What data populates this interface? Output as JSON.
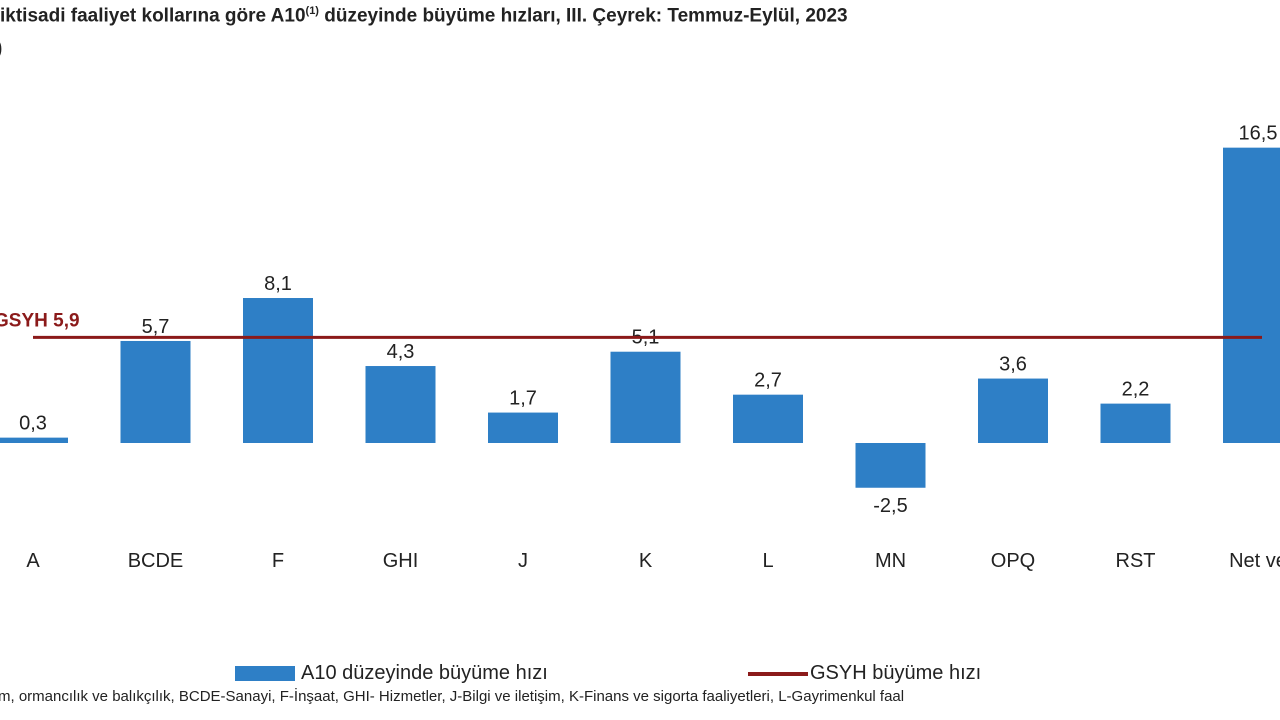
{
  "chart_data": {
    "type": "bar",
    "title": "iktisadi faaliyet kollarına göre A10",
    "title_sup": "(1)",
    "title_rest": " düzeyinde büyüme hızları, III. Çeyrek: Temmuz-Eylül, 2023",
    "unit_fragment": ")",
    "categories": [
      "A",
      "BCDE",
      "F",
      "GHI",
      "J",
      "K",
      "L",
      "MN",
      "OPQ",
      "RST",
      "Net ve"
    ],
    "values": [
      0.3,
      5.7,
      8.1,
      4.3,
      1.7,
      5.1,
      2.7,
      -2.5,
      3.6,
      2.2,
      16.5
    ],
    "value_labels": [
      "0,3",
      "5,7",
      "8,1",
      "4,3",
      "1,7",
      "5,1",
      "2,7",
      "-2,5",
      "3,6",
      "2,2",
      "16,5"
    ],
    "reference_line": {
      "name": "GSYH büyüme hızı",
      "value": 5.9,
      "label": "GSYH 5,9"
    },
    "legend": [
      {
        "name": "A10 düzeyinde büyüme hızı",
        "type": "bar"
      },
      {
        "name": "GSYH büyüme hızı",
        "type": "line"
      }
    ],
    "legend_position": "bottom",
    "grid": false,
    "colors": {
      "bar": "#2E7FC6",
      "line": "#8B1A1A"
    }
  },
  "footnote": "m, ormancılık ve balıkçılık, BCDE-Sanayi, F-İnşaat, GHI- Hizmetler, J-Bilgi ve iletişim, K-Finans ve sigorta faaliyetleri, L-Gayrimenkul faal"
}
